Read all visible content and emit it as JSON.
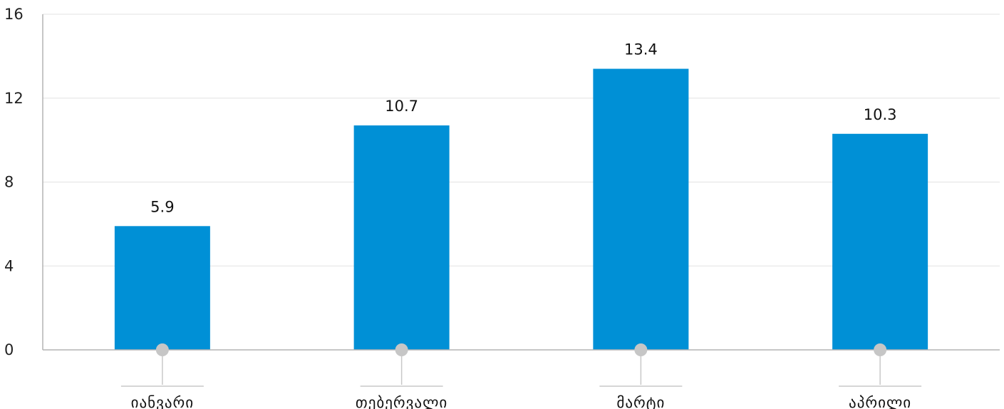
{
  "chart_data": {
    "type": "bar",
    "title": "",
    "xlabel": "",
    "ylabel": "",
    "categories": [
      "იანვარი",
      "თებერვალი",
      "მარტი",
      "აპრილი"
    ],
    "values": [
      5.9,
      10.7,
      13.4,
      10.3
    ],
    "value_labels": [
      "5.9",
      "10.7",
      "13.4",
      "10.3"
    ],
    "ylim": [
      0,
      16
    ],
    "yticks": [
      0,
      4,
      8,
      12,
      16
    ],
    "ytick_labels": [
      "0",
      "4",
      "8",
      "12",
      "16"
    ],
    "grid": true,
    "legend": "none",
    "colors": {
      "bar": "#0090d6",
      "grid": "#e3e3e3",
      "axis": "#b3b3b3",
      "marker": "#c6c6c6"
    }
  }
}
